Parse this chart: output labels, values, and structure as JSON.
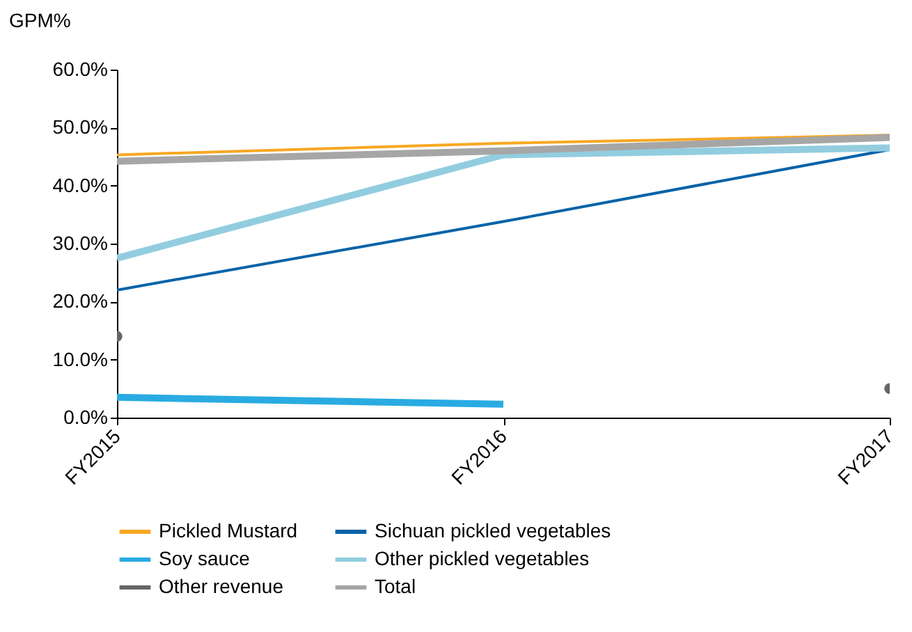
{
  "chart_data": {
    "type": "line",
    "ylabel": "GPM%",
    "categories": [
      "FY2015",
      "FY2016",
      "FY2017"
    ],
    "series": [
      {
        "name": "Pickled Mustard",
        "color": "#f7a823",
        "values": [
          45.3,
          47.3,
          48.7
        ]
      },
      {
        "name": "Sichuan pickled vegetables",
        "color": "#0563a8",
        "values": [
          22,
          33.8,
          46.2
        ]
      },
      {
        "name": "Soy sauce",
        "color": "#29abe2",
        "values": [
          3.5,
          2.3,
          null
        ]
      },
      {
        "name": "Other pickled vegetables",
        "color": "#92cddf",
        "values": [
          27.5,
          45.3,
          46.5
        ]
      },
      {
        "name": "Other revenue",
        "type": "scatter",
        "marker": "circle",
        "color": "#666666",
        "values": [
          14,
          null,
          5
        ]
      },
      {
        "name": "Total",
        "color": "#a6a6a6",
        "values": [
          44.2,
          46,
          48.3
        ]
      }
    ],
    "ylim": [
      0,
      60
    ],
    "yticks": [
      {
        "value": 0,
        "label": "0.0%"
      },
      {
        "value": 10,
        "label": "10.0%"
      },
      {
        "value": 20,
        "label": "20.0%"
      },
      {
        "value": 30,
        "label": "30.0%"
      },
      {
        "value": 40,
        "label": "40.0%"
      },
      {
        "value": 50,
        "label": "50.0%"
      },
      {
        "value": 60,
        "label": "60.0%"
      }
    ],
    "legend": "bottom",
    "grid": false,
    "marker": "none",
    "line_style": "solid"
  }
}
